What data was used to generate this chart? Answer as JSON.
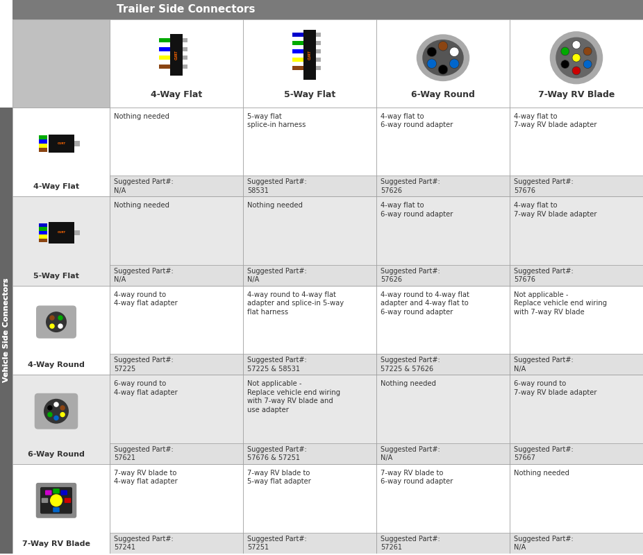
{
  "title": "Trailer Side Connectors",
  "col_header_bg": "#c8c8c8",
  "row_header_bg": "#c8c8c8",
  "title_bg": "#888888",
  "cell_bg_light": "#ffffff",
  "cell_bg_gray": "#e8e8e8",
  "grid_color": "#aaaaaa",
  "col_labels": [
    "4-Way Flat",
    "5-Way Flat",
    "6-Way Round",
    "7-Way RV Blade"
  ],
  "row_labels": [
    "4-Way Flat",
    "5-Way Flat",
    "4-Way Round",
    "6-Way Round",
    "7-Way RV Blade"
  ],
  "side_label": "Vehicle Side Connectors",
  "cells": [
    [
      {
        "desc": "Nothing needed",
        "part": "Suggested Part#:\nN/A"
      },
      {
        "desc": "5-way flat\nsplice-in harness",
        "part": "Suggested Part#:\n58531"
      },
      {
        "desc": "4-way flat to\n6-way round adapter",
        "part": "Suggested Part#:\n57626"
      },
      {
        "desc": "4-way flat to\n7-way RV blade adapter",
        "part": "Suggested Part#:\n57676"
      }
    ],
    [
      {
        "desc": "Nothing needed",
        "part": "Suggested Part#:\nN/A"
      },
      {
        "desc": "Nothing needed",
        "part": "Suggested Part#:\nN/A"
      },
      {
        "desc": "4-way flat to\n6-way round adapter",
        "part": "Suggested Part#:\n57626"
      },
      {
        "desc": "4-way flat to\n7-way RV blade adapter",
        "part": "Suggested Part#:\n57676"
      }
    ],
    [
      {
        "desc": "4-way round to\n4-way flat adapter",
        "part": "Suggested Part#:\n57225"
      },
      {
        "desc": "4-way round to 4-way flat\nadapter and splice-in 5-way\nflat harness",
        "part": "Suggested Part#:\n57225 & 58531"
      },
      {
        "desc": "4-way round to 4-way flat\nadapter and 4-way flat to\n6-way round adapter",
        "part": "Suggested Part#:\n57225 & 57626"
      },
      {
        "desc": "Not applicable -\nReplace vehicle end wiring\nwith 7-way RV blade",
        "part": "Suggested Part#:\nN/A"
      }
    ],
    [
      {
        "desc": "6-way round to\n4-way flat adapter",
        "part": "Suggested Part#:\n57621"
      },
      {
        "desc": "Not applicable -\nReplace vehicle end wiring\nwith 7-way RV blade and\nuse adapter",
        "part": "Suggested Part#:\n57676 & 57251"
      },
      {
        "desc": "Nothing needed",
        "part": "Suggested Part#:\nN/A"
      },
      {
        "desc": "6-way round to\n7-way RV blade adapter",
        "part": "Suggested Part#:\n57667"
      }
    ],
    [
      {
        "desc": "7-way RV blade to\n4-way flat adapter",
        "part": "Suggested Part#:\n57241"
      },
      {
        "desc": "7-way RV blade to\n5-way flat adapter",
        "part": "Suggested Part#:\n57251"
      },
      {
        "desc": "7-way RV blade to\n6-way round adapter",
        "part": "Suggested Part#:\n57261"
      },
      {
        "desc": "Nothing needed",
        "part": "Suggested Part#:\nN/A"
      }
    ]
  ]
}
